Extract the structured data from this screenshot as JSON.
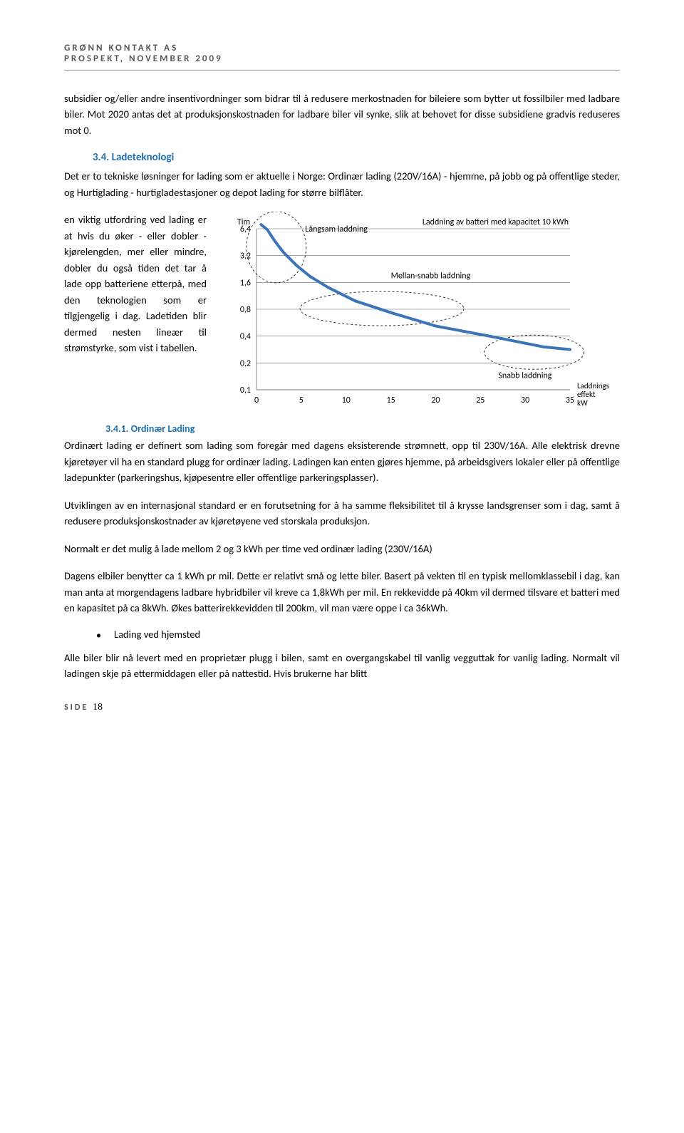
{
  "header": {
    "line1": "GRØNN KONTAKT AS",
    "line2": "PROSPEKT, NOVEMBER 2009"
  },
  "paragraphs": {
    "p1": "subsidier og/eller andre insentivordninger som bidrar til å redusere merkostnaden for bileiere som bytter ut fossilbiler med ladbare biler. Mot 2020 antas det at produksjonskostnaden for ladbare biler vil synke, slik at behovet for disse subsidiene gradvis reduseres mot 0.",
    "s34_title": "3.4.   Ladeteknologi",
    "p2": "Det er to tekniske løsninger for lading som er aktuelle i Norge: Ordinær lading (220V/16A) - hjemme, på jobb og på offentlige steder, og Hurtiglading - hurtigladestasjoner og depot lading for større bilflåter.",
    "side_text": "en viktig utfordring ved lading er at hvis du øker - eller dobler - kjørelengden, mer eller mindre, dobler du også tiden det tar å lade opp batteriene etterpå, med den teknologien som er tilgjengelig i dag. Ladetiden blir dermed nesten lineær til strømstyrke, som vist i tabellen.",
    "s341_title": "3.4.1.   Ordinær Lading",
    "p3": "Ordinært lading er definert som lading som foregår med dagens eksisterende strømnett, opp til 230V/16A. Alle elektrisk drevne kjøretøyer vil ha en standard plugg for ordinær lading. Ladingen kan enten gjøres hjemme, på arbeidsgivers lokaler eller på offentlige ladepunkter (parkeringshus, kjøpesentre eller offentlige parkeringsplasser).",
    "p4": "Utviklingen av en internasjonal standard er en forutsetning for å ha samme fleksibilitet til å krysse landsgrenser som i dag, samt å redusere produksjonskostnader av kjøretøyene ved storskala produksjon.",
    "p5": "Normalt er det mulig å lade mellom 2 og 3 kWh per time ved ordinær lading (230V/16A)",
    "p6": "Dagens elbiler benytter ca 1 kWh pr mil. Dette er relativt små og lette biler. Basert på vekten til en typisk mellomklassebil i dag, kan man anta at morgendagens ladbare hybridbiler vil kreve ca 1,8kWh per mil. En rekkevidde på 40km vil dermed tilsvare et batteri med en kapasitet på ca 8kWh. Økes batterirekkevidden til 200km, vil man være oppe i ca 36kWh.",
    "bullet1": "Lading ved hjemsted",
    "p7": "Alle biler blir nå levert med en proprietær plugg i bilen, samt en overgangskabel til vanlig vegguttak for vanlig lading. Normalt vil ladingen skje på ettermiddagen eller på nattestid. Hvis brukerne har blitt"
  },
  "chart": {
    "title_right": "Laddning av batteri med kapacitet 10 kWh",
    "y_label": "Tim",
    "x_label_right1": "Laddnings",
    "x_label_right2": "effekt",
    "x_label_right3": "kW",
    "y_ticks": [
      "6,4",
      "3,2",
      "1,6",
      "0,8",
      "0,4",
      "0,2",
      "0,1"
    ],
    "x_ticks": [
      "0",
      "5",
      "10",
      "15",
      "20",
      "25",
      "30",
      "35"
    ],
    "annotations": {
      "slow": "Långsam laddning",
      "medium": "Mellan-snabb laddning",
      "fast": "Snabb laddning"
    },
    "line_color": "#3b74b8",
    "line_width": 4,
    "grid_color": "#666666",
    "circle_color": "#333333",
    "ellipse_dash": "3,3",
    "font_color": "#000000",
    "label_fontsize": 12,
    "tick_fontsize": 12,
    "curve_points": [
      [
        0.5,
        6.9
      ],
      [
        1.2,
        6.3
      ],
      [
        2.0,
        5.0
      ],
      [
        3.0,
        3.6
      ],
      [
        4.5,
        2.6
      ],
      [
        6.0,
        1.95
      ],
      [
        8.0,
        1.45
      ],
      [
        11.0,
        1.05
      ],
      [
        15.0,
        0.75
      ],
      [
        20.0,
        0.55
      ],
      [
        26.0,
        0.4
      ],
      [
        32.0,
        0.32
      ],
      [
        35.0,
        0.3
      ]
    ],
    "x_domain": [
      0,
      35
    ],
    "y_domain": [
      0.1,
      6.4
    ],
    "y_tick_values": [
      6.4,
      3.2,
      1.6,
      0.8,
      0.4,
      0.2,
      0.1
    ]
  },
  "footer": {
    "label": "SIDE",
    "page": "18"
  },
  "colors": {
    "heading_blue": "#1f6fb2",
    "text_black": "#000000",
    "header_gray": "#555555"
  }
}
